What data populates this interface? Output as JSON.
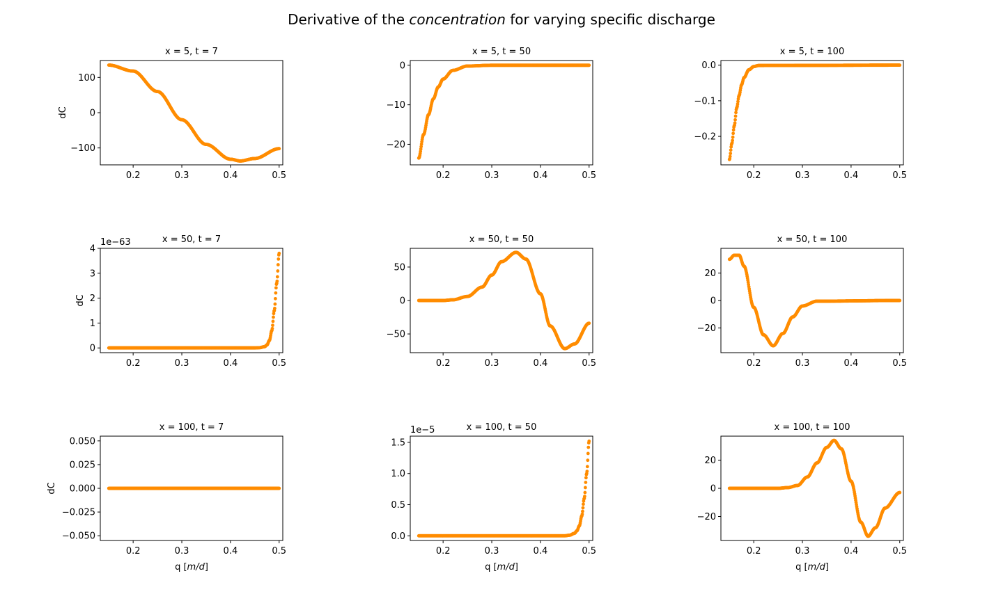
{
  "figure": {
    "title_plain_before": "Derivative of the ",
    "title_italic": "concentration",
    "title_plain_after": " for varying specific discharge"
  },
  "colors": {
    "points": "#ff8c00",
    "axes": "#000000"
  },
  "chart_data": [
    {
      "type": "scatter",
      "title": "x = 5, t = 7",
      "xlabel": "",
      "ylabel": "dC",
      "xlim": [
        0.1325,
        0.5075
      ],
      "ylim": [
        -148,
        148
      ],
      "xticks": [
        0.2,
        0.3,
        0.4,
        0.5
      ],
      "xtick_labels": [
        "0.2",
        "0.3",
        "0.4",
        "0.5"
      ],
      "yticks": [
        -100,
        0,
        100
      ],
      "ytick_labels": [
        "−100",
        "0",
        "100"
      ],
      "offset_text": "",
      "series": [
        {
          "x": [
            0.15,
            0.2,
            0.25,
            0.3,
            0.35,
            0.4,
            0.42,
            0.45,
            0.5
          ],
          "y": [
            135,
            118,
            60,
            -20,
            -90,
            -132,
            -137,
            -130,
            -102
          ]
        }
      ]
    },
    {
      "type": "scatter",
      "title": "x = 5, t = 50",
      "xlabel": "",
      "ylabel": "",
      "xlim": [
        0.1325,
        0.5075
      ],
      "ylim": [
        -25.2,
        1.2
      ],
      "xticks": [
        0.2,
        0.3,
        0.4,
        0.5
      ],
      "xtick_labels": [
        "0.2",
        "0.3",
        "0.4",
        "0.5"
      ],
      "yticks": [
        -20,
        -10,
        0
      ],
      "ytick_labels": [
        "−20",
        "−10",
        "0"
      ],
      "offset_text": "",
      "series": [
        {
          "x": [
            0.15,
            0.16,
            0.17,
            0.18,
            0.19,
            0.2,
            0.22,
            0.25,
            0.3,
            0.5
          ],
          "y": [
            -23.5,
            -17.5,
            -12.5,
            -8.5,
            -5.5,
            -3.5,
            -1.3,
            -0.2,
            0,
            0
          ]
        }
      ]
    },
    {
      "type": "scatter",
      "title": "x = 5, t = 100",
      "xlabel": "",
      "ylabel": "",
      "xlim": [
        0.1325,
        0.5075
      ],
      "ylim": [
        -0.28,
        0.013
      ],
      "xticks": [
        0.2,
        0.3,
        0.4,
        0.5
      ],
      "xtick_labels": [
        "0.2",
        "0.3",
        "0.4",
        "0.5"
      ],
      "yticks": [
        -0.2,
        -0.1,
        0.0
      ],
      "ytick_labels": [
        "−0.2",
        "−0.1",
        "0.0"
      ],
      "offset_text": "",
      "series": [
        {
          "x": [
            0.15,
            0.155,
            0.16,
            0.165,
            0.17,
            0.175,
            0.18,
            0.19,
            0.2,
            0.21,
            0.5
          ],
          "y": [
            -0.265,
            -0.22,
            -0.17,
            -0.12,
            -0.085,
            -0.055,
            -0.035,
            -0.013,
            -0.004,
            -0.001,
            0
          ]
        }
      ]
    },
    {
      "type": "scatter",
      "title": "x = 50, t = 7",
      "xlabel": "",
      "ylabel": "dC",
      "xlim": [
        0.1325,
        0.5075
      ],
      "ylim": [
        -0.19,
        4.0
      ],
      "xticks": [
        0.2,
        0.3,
        0.4,
        0.5
      ],
      "xtick_labels": [
        "0.2",
        "0.3",
        "0.4",
        "0.5"
      ],
      "yticks": [
        0,
        1,
        2,
        3,
        4
      ],
      "ytick_labels": [
        "0",
        "1",
        "2",
        "3",
        "4"
      ],
      "offset_text": "1e−63",
      "series": [
        {
          "x": [
            0.15,
            0.45,
            0.46,
            0.47,
            0.475,
            0.48,
            0.485,
            0.49,
            0.495,
            0.5
          ],
          "y": [
            0,
            0,
            0.01,
            0.05,
            0.12,
            0.3,
            0.7,
            1.5,
            2.6,
            3.8
          ]
        }
      ]
    },
    {
      "type": "scatter",
      "title": "x = 50, t = 50",
      "xlabel": "",
      "ylabel": "",
      "xlim": [
        0.1325,
        0.5075
      ],
      "ylim": [
        -78,
        78
      ],
      "xticks": [
        0.2,
        0.3,
        0.4,
        0.5
      ],
      "xtick_labels": [
        "0.2",
        "0.3",
        "0.4",
        "0.5"
      ],
      "yticks": [
        -50,
        0,
        50
      ],
      "ytick_labels": [
        "−50",
        "0",
        "50"
      ],
      "offset_text": "",
      "series": [
        {
          "x": [
            0.15,
            0.2,
            0.22,
            0.25,
            0.28,
            0.3,
            0.32,
            0.35,
            0.37,
            0.4,
            0.42,
            0.45,
            0.47,
            0.5
          ],
          "y": [
            0,
            0,
            1,
            6,
            20,
            38,
            58,
            72,
            62,
            10,
            -38,
            -72,
            -65,
            -34
          ]
        }
      ]
    },
    {
      "type": "scatter",
      "title": "x = 50, t = 100",
      "xlabel": "",
      "ylabel": "",
      "xlim": [
        0.1325,
        0.5075
      ],
      "ylim": [
        -38,
        38
      ],
      "xticks": [
        0.2,
        0.3,
        0.4,
        0.5
      ],
      "xtick_labels": [
        "0.2",
        "0.3",
        "0.4",
        "0.5"
      ],
      "yticks": [
        -20,
        0,
        20
      ],
      "ytick_labels": [
        "−20",
        "0",
        "20"
      ],
      "offset_text": "",
      "series": [
        {
          "x": [
            0.15,
            0.16,
            0.17,
            0.18,
            0.2,
            0.22,
            0.24,
            0.26,
            0.28,
            0.3,
            0.33,
            0.5
          ],
          "y": [
            30,
            33,
            33,
            25,
            -5,
            -25,
            -33,
            -24,
            -12,
            -4,
            -0.5,
            0
          ]
        }
      ]
    },
    {
      "type": "scatter",
      "title": "x = 100, t = 7",
      "xlabel": "q [m/d]",
      "ylabel": "dC",
      "xlim": [
        0.1325,
        0.5075
      ],
      "ylim": [
        -0.055,
        0.055
      ],
      "xticks": [
        0.2,
        0.3,
        0.4,
        0.5
      ],
      "xtick_labels": [
        "0.2",
        "0.3",
        "0.4",
        "0.5"
      ],
      "yticks": [
        -0.05,
        -0.025,
        0.0,
        0.025,
        0.05
      ],
      "ytick_labels": [
        "−0.050",
        "−0.025",
        "0.000",
        "0.025",
        "0.050"
      ],
      "offset_text": "",
      "series": [
        {
          "x": [
            0.15,
            0.5
          ],
          "y": [
            0,
            0
          ]
        }
      ]
    },
    {
      "type": "scatter",
      "title": "x = 100, t = 50",
      "xlabel": "q [m/d]",
      "ylabel": "",
      "xlim": [
        0.1325,
        0.5075
      ],
      "ylim": [
        -0.075,
        1.6
      ],
      "xticks": [
        0.2,
        0.3,
        0.4,
        0.5
      ],
      "xtick_labels": [
        "0.2",
        "0.3",
        "0.4",
        "0.5"
      ],
      "yticks": [
        0,
        0.5,
        1.0,
        1.5
      ],
      "ytick_labels": [
        "0.0",
        "0.5",
        "1.0",
        "1.5"
      ],
      "offset_text": "1e−5",
      "series": [
        {
          "x": [
            0.15,
            0.45,
            0.46,
            0.47,
            0.475,
            0.48,
            0.485,
            0.49,
            0.495,
            0.5
          ],
          "y": [
            0,
            0,
            0.01,
            0.04,
            0.08,
            0.16,
            0.32,
            0.6,
            1.0,
            1.52
          ]
        }
      ]
    },
    {
      "type": "scatter",
      "title": "x = 100, t = 100",
      "xlabel": "q [m/d]",
      "ylabel": "",
      "xlim": [
        0.1325,
        0.5075
      ],
      "ylim": [
        -37,
        37
      ],
      "xticks": [
        0.2,
        0.3,
        0.4,
        0.5
      ],
      "xtick_labels": [
        "0.2",
        "0.3",
        "0.4",
        "0.5"
      ],
      "yticks": [
        -20,
        0,
        20
      ],
      "ytick_labels": [
        "−20",
        "0",
        "20"
      ],
      "offset_text": "",
      "series": [
        {
          "x": [
            0.15,
            0.25,
            0.27,
            0.29,
            0.31,
            0.33,
            0.35,
            0.365,
            0.38,
            0.4,
            0.42,
            0.435,
            0.45,
            0.47,
            0.5
          ],
          "y": [
            0,
            0,
            0.5,
            2,
            8,
            18,
            29,
            34,
            28,
            5,
            -24,
            -34,
            -28,
            -14,
            -3
          ]
        }
      ]
    }
  ]
}
